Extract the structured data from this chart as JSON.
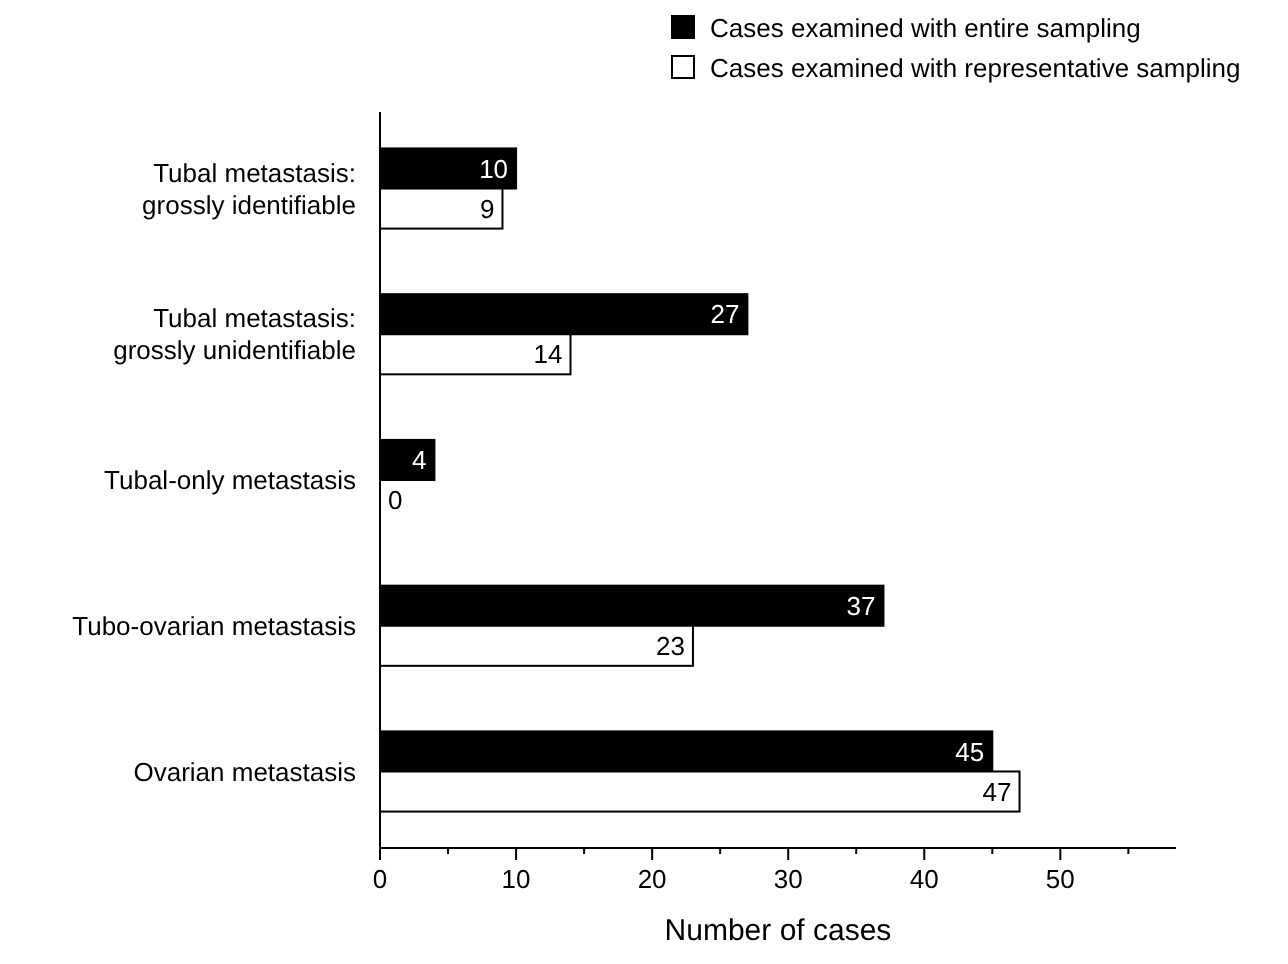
{
  "chart_data": {
    "type": "bar",
    "orientation": "horizontal",
    "xlabel": "Number of cases",
    "categories": [
      "Tubal metastasis:\ngrossly identifiable",
      "Tubal metastasis:\ngrossly unidentifiable",
      "Tubal-only metastasis",
      "Tubo-ovarian metastasis",
      "Ovarian metastasis"
    ],
    "series": [
      {
        "name": "Cases examined with entire sampling",
        "color": "#000000",
        "values": [
          10,
          27,
          4,
          37,
          45
        ]
      },
      {
        "name": "Cases examined with representative sampling",
        "color": "#ffffff",
        "values": [
          9,
          14,
          0,
          23,
          47
        ]
      }
    ],
    "xlim": [
      0,
      58.5
    ],
    "xticks": [
      0,
      {
        "value": 5,
        "label": null
      },
      10,
      {
        "value": 15,
        "label": null
      },
      20,
      {
        "value": 25,
        "label": null
      },
      30,
      {
        "value": 35,
        "label": null
      },
      40,
      {
        "value": 45,
        "label": null
      },
      50,
      {
        "value": 55,
        "label": null
      }
    ],
    "data_labels": true,
    "legend": "top right",
    "grid": false
  }
}
